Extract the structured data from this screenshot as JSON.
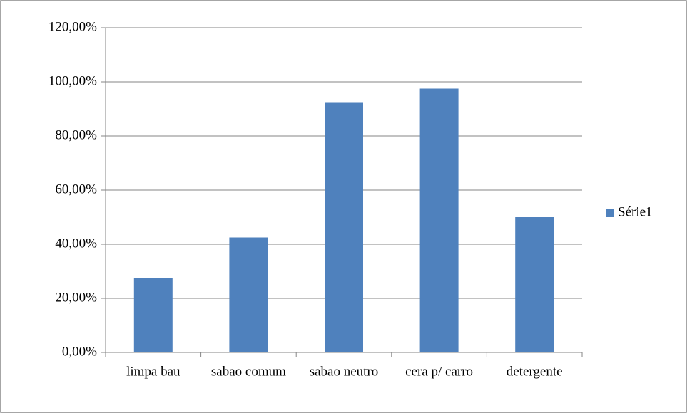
{
  "chart_data": {
    "type": "bar",
    "categories": [
      "limpa bau",
      "sabao comum",
      "sabao neutro",
      "cera p/ carro",
      "detergente"
    ],
    "series": [
      {
        "name": "Série1",
        "color": "#4f81bd",
        "values": [
          27.5,
          42.5,
          92.5,
          97.5,
          50
        ]
      }
    ],
    "ylim": [
      0,
      120
    ],
    "yticks": [
      {
        "value": 0,
        "label": "0,00%"
      },
      {
        "value": 20,
        "label": "20,00%"
      },
      {
        "value": 40,
        "label": "40,00%"
      },
      {
        "value": 60,
        "label": "60,00%"
      },
      {
        "value": 80,
        "label": "80,00%"
      },
      {
        "value": 100,
        "label": "100,00%"
      },
      {
        "value": 120,
        "label": "120,00%"
      }
    ],
    "grid": true,
    "legend": "right"
  }
}
